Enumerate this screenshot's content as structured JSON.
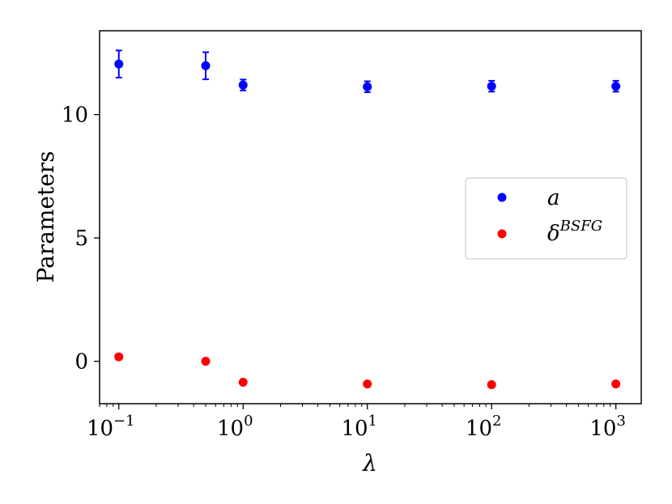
{
  "chart_data": {
    "type": "scatter",
    "xlabel": "λ",
    "ylabel": "Parameters",
    "x_scale": "log",
    "xlim": [
      0.07,
      1600
    ],
    "ylim": [
      -1.72,
      13.4
    ],
    "grid": false,
    "legend_position": "center-right",
    "x_ticks": [
      {
        "value": 0.1,
        "base": "10",
        "exp": "−1"
      },
      {
        "value": 1,
        "base": "10",
        "exp": "0"
      },
      {
        "value": 10,
        "base": "10",
        "exp": "1"
      },
      {
        "value": 100,
        "base": "10",
        "exp": "2"
      },
      {
        "value": 1000,
        "base": "10",
        "exp": "3"
      }
    ],
    "y_ticks": [
      {
        "value": 0,
        "label": "0"
      },
      {
        "value": 5,
        "label": "5"
      },
      {
        "value": 10,
        "label": "10"
      }
    ],
    "series": [
      {
        "name": "a",
        "color": "#0000ff",
        "x": [
          0.1,
          0.5,
          1,
          10,
          100,
          1000
        ],
        "y": [
          12.05,
          11.98,
          11.2,
          11.13,
          11.15,
          11.15
        ],
        "yerr": [
          0.55,
          0.55,
          0.22,
          0.22,
          0.22,
          0.22
        ]
      },
      {
        "name": "δ^{BSFG}",
        "color": "#ff0000",
        "x": [
          0.1,
          0.5,
          1,
          10,
          100,
          1000
        ],
        "y": [
          0.18,
          0.0,
          -0.85,
          -0.92,
          -0.95,
          -0.92
        ],
        "yerr": [
          0,
          0,
          0,
          0,
          0,
          0
        ]
      }
    ]
  },
  "legend": {
    "items": [
      {
        "main": "a",
        "sup": "",
        "color": "#0000ff"
      },
      {
        "main": "δ",
        "sup": "BSFG",
        "color": "#ff0000"
      }
    ]
  }
}
